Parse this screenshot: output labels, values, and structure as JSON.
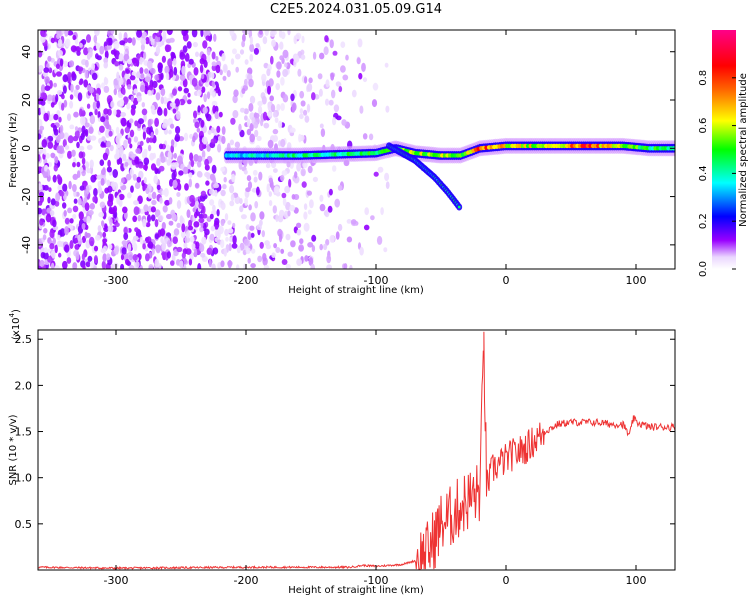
{
  "title": "C2E5.2024.031.05.09.G14",
  "chart_data": [
    {
      "type": "heatmap",
      "title": "C2E5.2024.031.05.09.G14",
      "xlabel": "Height of straight line (km)",
      "ylabel": "Frequency (Hz)",
      "xlim": [
        -360,
        130
      ],
      "ylim": [
        -50,
        49
      ],
      "xticks": [
        -300,
        -200,
        -100,
        0,
        100
      ],
      "yticks": [
        -40,
        -20,
        0,
        20,
        40
      ],
      "grid": false,
      "colorbar": {
        "label": "Normalized spectral amplitude",
        "range": [
          0,
          1
        ],
        "ticks": [
          "0.0",
          "0.2",
          "0.4",
          "0.6",
          "0.8"
        ],
        "colormap": [
          "#ffffff",
          "#e6ccff",
          "#8800ff",
          "#0000ff",
          "#00ffff",
          "#00ff00",
          "#ffff00",
          "#ff0000",
          "#ff0088"
        ]
      },
      "signal_track": [
        {
          "x": -215,
          "y": -3,
          "amp": 0.35
        },
        {
          "x": -190,
          "y": -3,
          "amp": 0.4
        },
        {
          "x": -160,
          "y": -3,
          "amp": 0.45
        },
        {
          "x": -130,
          "y": -2.5,
          "amp": 0.45
        },
        {
          "x": -100,
          "y": -2,
          "amp": 0.5
        },
        {
          "x": -85,
          "y": 0,
          "amp": 0.55
        },
        {
          "x": -70,
          "y": -2,
          "amp": 0.6
        },
        {
          "x": -50,
          "y": -3,
          "amp": 0.6
        },
        {
          "x": -35,
          "y": -3,
          "amp": 0.55
        },
        {
          "x": -20,
          "y": 0,
          "amp": 0.85
        },
        {
          "x": 0,
          "y": 1,
          "amp": 0.7
        },
        {
          "x": 30,
          "y": 1,
          "amp": 0.6
        },
        {
          "x": 60,
          "y": 1,
          "amp": 0.85
        },
        {
          "x": 90,
          "y": 1,
          "amp": 0.6
        },
        {
          "x": 110,
          "y": 0,
          "amp": 0.5
        },
        {
          "x": 130,
          "y": 0,
          "amp": 0.45
        }
      ],
      "signal_branch": [
        {
          "x": -90,
          "y": 1
        },
        {
          "x": -70,
          "y": -5
        },
        {
          "x": -55,
          "y": -12
        },
        {
          "x": -45,
          "y": -18
        },
        {
          "x": -35,
          "y": -25
        }
      ]
    },
    {
      "type": "line",
      "xlabel": "Height of straight line (km)",
      "ylabel": "SNR (10 * v/v)",
      "yunit": "(x10",
      "yunit_exp": "4",
      "yunit_close": ")",
      "xlim": [
        -360,
        130
      ],
      "ylim": [
        0,
        2.6
      ],
      "xticks": [
        -300,
        -200,
        -100,
        0,
        100
      ],
      "yticks": [
        "0.5",
        "1.0",
        "1.5",
        "2.0",
        "2.5"
      ],
      "color": "#ee3333",
      "grid": false,
      "x": [
        -360,
        -300,
        -200,
        -120,
        -110,
        -100,
        -80,
        -70,
        -60,
        -55,
        -50,
        -45,
        -40,
        -35,
        -30,
        -25,
        -20,
        -17,
        -15,
        -10,
        -5,
        0,
        5,
        10,
        15,
        20,
        30,
        40,
        50,
        60,
        70,
        80,
        90,
        95,
        98,
        100,
        110,
        120,
        130
      ],
      "values": [
        0.03,
        0.02,
        0.03,
        0.03,
        0.05,
        0.04,
        0.06,
        0.1,
        0.2,
        0.35,
        0.5,
        0.55,
        0.6,
        0.7,
        0.75,
        0.8,
        0.85,
        2.5,
        0.9,
        1.1,
        1.15,
        1.2,
        1.25,
        1.28,
        1.32,
        1.38,
        1.5,
        1.58,
        1.6,
        1.6,
        1.6,
        1.58,
        1.58,
        1.45,
        1.65,
        1.6,
        1.55,
        1.55,
        1.55
      ]
    }
  ]
}
